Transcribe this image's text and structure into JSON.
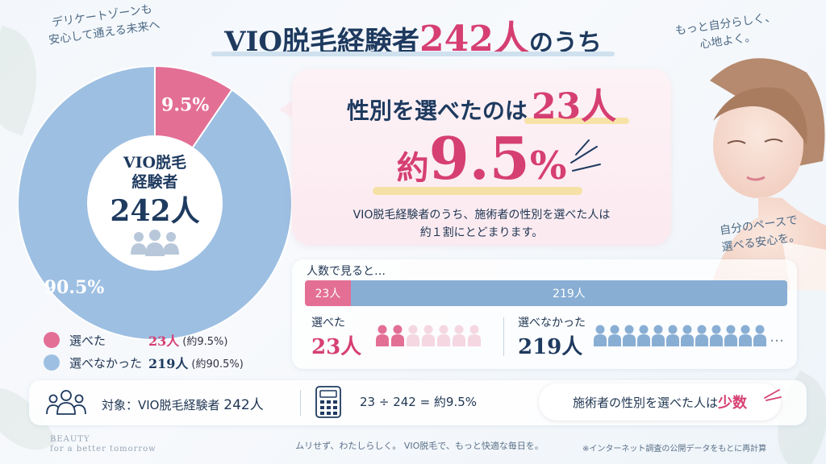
{
  "title": {
    "part1": "VIO脱毛経験者",
    "part2": "242人",
    "part3": "のうち"
  },
  "taglines": {
    "left": [
      "デリケートゾーンも",
      "安心して通える未来へ"
    ],
    "right": [
      "もっと自分らしく、",
      "心地よく。"
    ],
    "lower": [
      "自分のペースで",
      "選べる安心を。"
    ]
  },
  "donut_center": {
    "line1": "VIO脱毛",
    "line2": "経験者",
    "count": "242人"
  },
  "headline": {
    "part1": "性別を選べたのは",
    "part2": "23人"
  },
  "big_pct": {
    "prefix": "約",
    "number": "9.5",
    "suffix": "%"
  },
  "description": [
    "VIO脱毛経験者のうち、施術者の性別を選べた人は",
    "約１割にとどまります。"
  ],
  "people_panel": {
    "title": "人数で見ると…",
    "selected": {
      "label": "選べた",
      "count": "23人",
      "bar_label": "23人",
      "icons_shown": 7,
      "icons_highlighted": 2
    },
    "not_selected": {
      "label": "選べなかった",
      "count": "219人",
      "bar_label": "219人",
      "icons_shown": 12,
      "ellipsis": "…"
    }
  },
  "legend": [
    {
      "label": "選べた",
      "count": "23人",
      "pct": "(約9.5%)",
      "color": "#e36f95"
    },
    {
      "label": "選べなかった",
      "count": "219人",
      "pct": "(約90.5%)",
      "color": "#9dbfe2"
    }
  ],
  "bottom": {
    "target": "対象：VIO脱毛経験者",
    "target_count": "242人",
    "formula": "23 ÷ 242 = 約9.5%",
    "pill_text": "施術者の性別を選べた人は",
    "pill_emphasis": "少数"
  },
  "brand": [
    "BEAUTY",
    "for a better tomorrow"
  ],
  "footer": "ムリせず、わたしらしく。 VIO脱毛で、もっと快適な毎日を。",
  "note": "※インターネット調査の公開データをもとに再計算",
  "colors": {
    "pink": "#e36f95",
    "blue": "#9dbfe2",
    "bar_blue": "#89aed4",
    "navy": "#1e3a5f"
  },
  "chart_data": {
    "type": "pie",
    "categories": [
      "選べた",
      "選べなかった"
    ],
    "values": [
      23,
      219
    ],
    "percent_labels": [
      "9.5%",
      "90.5%"
    ],
    "donut": true,
    "legend": "bottom-left"
  }
}
